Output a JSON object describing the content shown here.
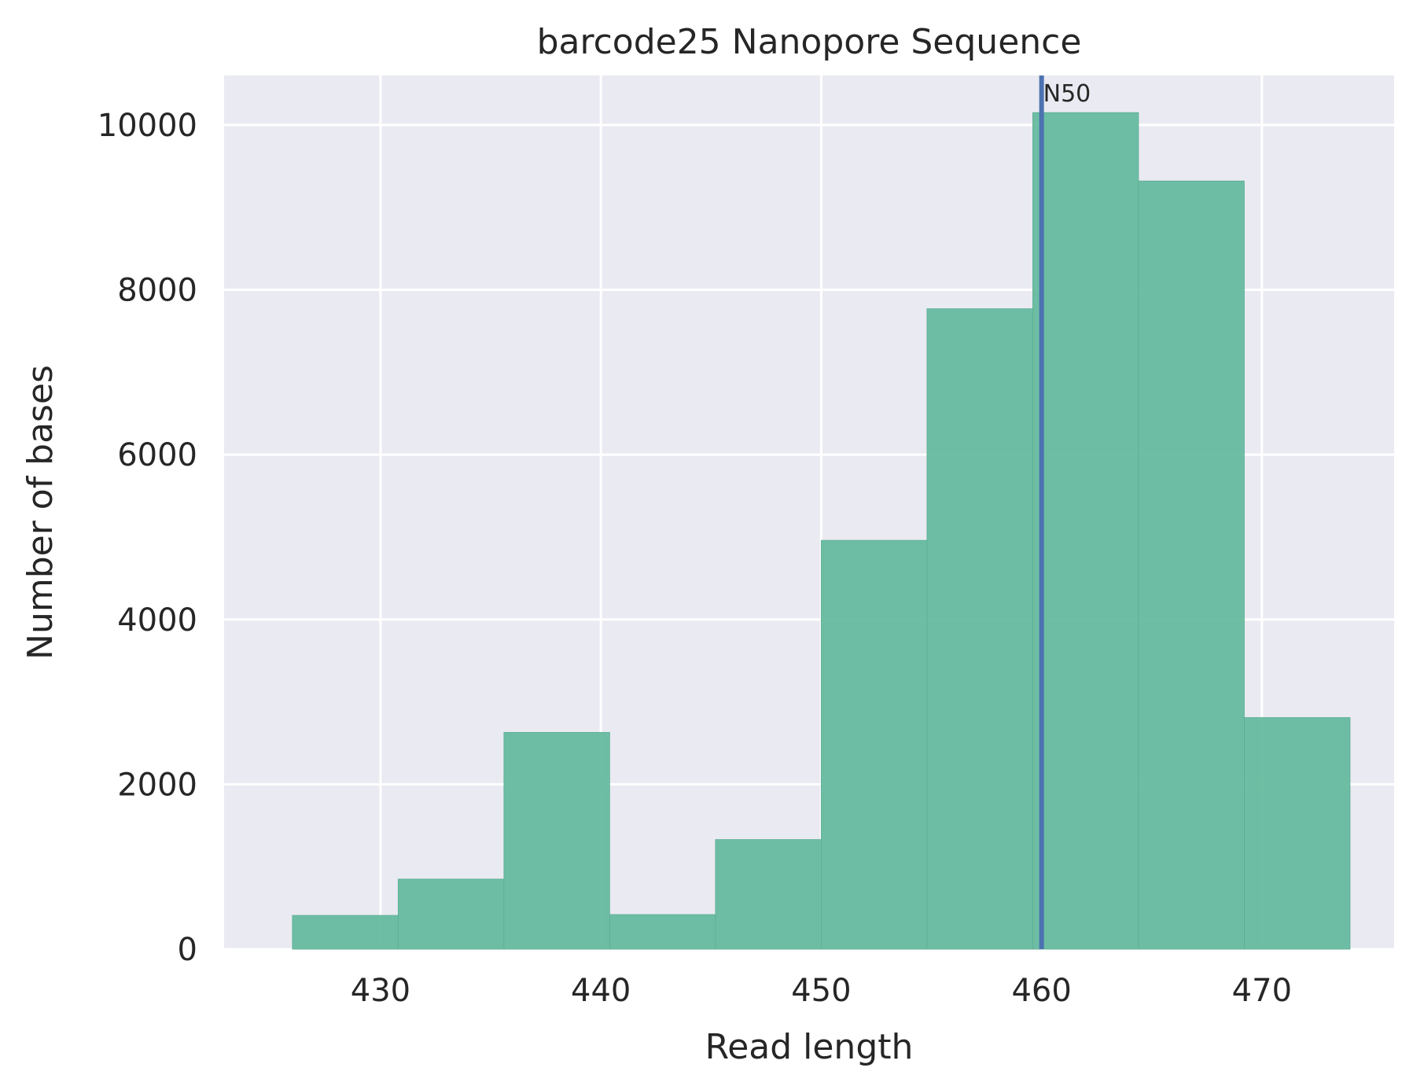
{
  "chart_data": {
    "type": "bar",
    "title": "barcode25 Nanopore Sequence",
    "xlabel": "Read length",
    "ylabel": "Number of bases",
    "xlim": [
      422.9,
      476.0
    ],
    "ylim": [
      0,
      10600
    ],
    "xticks": [
      430,
      440,
      450,
      460,
      470
    ],
    "yticks": [
      0,
      2000,
      4000,
      6000,
      8000,
      10000
    ],
    "bins": [
      {
        "x0": 426.0,
        "x1": 430.8,
        "value": 410
      },
      {
        "x0": 430.8,
        "x1": 435.6,
        "value": 850
      },
      {
        "x0": 435.6,
        "x1": 440.4,
        "value": 2630
      },
      {
        "x0": 440.4,
        "x1": 445.2,
        "value": 420
      },
      {
        "x0": 445.2,
        "x1": 450.0,
        "value": 1330
      },
      {
        "x0": 450.0,
        "x1": 454.8,
        "value": 4960
      },
      {
        "x0": 454.8,
        "x1": 459.6,
        "value": 7770
      },
      {
        "x0": 459.6,
        "x1": 464.4,
        "value": 10150
      },
      {
        "x0": 464.4,
        "x1": 469.2,
        "value": 9320
      },
      {
        "x0": 469.2,
        "x1": 474.0,
        "value": 2810
      }
    ],
    "annotations": [
      {
        "type": "vline",
        "x": 460.0,
        "label": "N50"
      }
    ],
    "grid": true,
    "colors": {
      "bar": "#66bb9f",
      "line": "#4c72b0",
      "plot_bg": "#eaeaf2",
      "grid": "#ffffff",
      "text": "#262626"
    }
  }
}
